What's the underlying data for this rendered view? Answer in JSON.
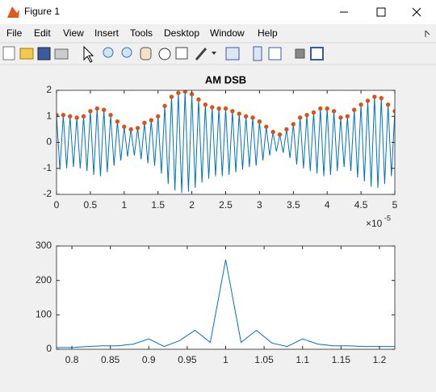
{
  "window": {
    "title": "Figure 1",
    "menu": [
      "File",
      "Edit",
      "View",
      "Insert",
      "Tools",
      "Desktop",
      "Window",
      "Help"
    ]
  },
  "chart_data": [
    {
      "type": "line",
      "title": "AM DSB",
      "x_multiplier": "×10",
      "x_exponent": "-5",
      "xlim": [
        0,
        5
      ],
      "xticks": [
        0,
        0.5,
        1,
        1.5,
        2,
        2.5,
        3,
        3.5,
        4,
        4.5,
        5
      ],
      "ylim": [
        -2,
        2
      ],
      "yticks": [
        -2,
        -1,
        0,
        1,
        2
      ],
      "series": [
        {
          "color": "#0072BD",
          "x": [
            0,
            0.05,
            0.1,
            0.15,
            0.2,
            0.25,
            0.3,
            0.35,
            0.4,
            0.45,
            0.5,
            0.55,
            0.6,
            0.65,
            0.7,
            0.75,
            0.8,
            0.85,
            0.9,
            0.95,
            1,
            1.05,
            1.1,
            1.15,
            1.2,
            1.25,
            1.3,
            1.35,
            1.4,
            1.45,
            1.5,
            1.55,
            1.6,
            1.65,
            1.7,
            1.75,
            1.8,
            1.85,
            1.9,
            1.95,
            2,
            2.05,
            2.1,
            2.15,
            2.2,
            2.25,
            2.3,
            2.35,
            2.4,
            2.45,
            2.5,
            2.55,
            2.6,
            2.65,
            2.7,
            2.75,
            2.8,
            2.85,
            2.9,
            2.95,
            3,
            3.05,
            3.1,
            3.15,
            3.2,
            3.25,
            3.3,
            3.35,
            3.4,
            3.45,
            3.5,
            3.55,
            3.6,
            3.65,
            3.7,
            3.75,
            3.8,
            3.85,
            3.9,
            3.95,
            4,
            4.05,
            4.1,
            4.15,
            4.2,
            4.25,
            4.3,
            4.35,
            4.4,
            4.45,
            4.5,
            4.55,
            4.6,
            4.65,
            4.7,
            4.75,
            4.8,
            4.85,
            4.9,
            4.95,
            5
          ],
          "values": [
            1.05,
            -1.05,
            1.05,
            -1.0,
            1.0,
            -0.95,
            0.95,
            -1.0,
            1.0,
            -1.1,
            1.2,
            -1.25,
            1.3,
            -1.3,
            1.25,
            -1.15,
            1.05,
            -0.9,
            0.8,
            -0.7,
            0.6,
            -0.55,
            0.5,
            -0.5,
            0.55,
            -0.65,
            0.75,
            -0.8,
            0.85,
            -0.9,
            1.0,
            -1.2,
            1.4,
            -1.6,
            1.75,
            -1.85,
            1.9,
            -1.95,
            1.95,
            -1.9,
            1.85,
            -1.75,
            1.65,
            -1.55,
            1.45,
            -1.4,
            1.35,
            -1.3,
            1.3,
            -1.3,
            1.3,
            -1.25,
            1.2,
            -1.15,
            1.1,
            -1.05,
            1.0,
            -0.95,
            0.95,
            -0.9,
            0.8,
            -0.7,
            0.6,
            -0.5,
            0.4,
            -0.35,
            0.3,
            -0.4,
            0.5,
            -0.6,
            0.7,
            -0.85,
            0.95,
            -1.0,
            1.05,
            -1.1,
            1.15,
            -1.2,
            1.3,
            -1.3,
            1.3,
            -1.25,
            1.2,
            -1.1,
            0.95,
            -0.95,
            1.0,
            -1.1,
            1.25,
            -1.35,
            1.45,
            -1.5,
            1.6,
            -1.7,
            1.75,
            -1.75,
            1.7,
            -1.6,
            1.45,
            -1.3,
            1.2
          ]
        },
        {
          "color": "#D95319",
          "marker": "o",
          "linestyle": "none",
          "x": [
            0,
            0.1,
            0.2,
            0.3,
            0.4,
            0.5,
            0.6,
            0.7,
            0.8,
            0.9,
            1,
            1.1,
            1.2,
            1.3,
            1.4,
            1.5,
            1.6,
            1.7,
            1.8,
            1.9,
            2,
            2.1,
            2.2,
            2.3,
            2.4,
            2.5,
            2.6,
            2.7,
            2.8,
            2.9,
            3,
            3.1,
            3.2,
            3.3,
            3.4,
            3.5,
            3.6,
            3.7,
            3.8,
            3.9,
            4,
            4.1,
            4.2,
            4.3,
            4.4,
            4.5,
            4.6,
            4.7,
            4.8,
            4.9,
            5
          ],
          "values": [
            1.05,
            1.05,
            1.0,
            0.95,
            1.0,
            1.2,
            1.3,
            1.25,
            1.05,
            0.8,
            0.6,
            0.5,
            0.55,
            0.75,
            0.85,
            1.0,
            1.4,
            1.75,
            1.9,
            1.95,
            1.85,
            1.65,
            1.45,
            1.35,
            1.3,
            1.3,
            1.2,
            1.1,
            1.0,
            0.95,
            0.8,
            0.6,
            0.4,
            0.3,
            0.5,
            0.7,
            0.95,
            1.05,
            1.15,
            1.3,
            1.3,
            1.2,
            0.95,
            1.0,
            1.25,
            1.45,
            1.6,
            1.75,
            1.7,
            1.45,
            1.2
          ]
        }
      ]
    },
    {
      "type": "line",
      "xlim": [
        0.78,
        1.22
      ],
      "xticks": [
        0.8,
        0.85,
        0.9,
        0.95,
        1,
        1.05,
        1.1,
        1.15,
        1.2
      ],
      "ylim": [
        0,
        300
      ],
      "yticks": [
        0,
        100,
        200,
        300
      ],
      "series": [
        {
          "color": "#0072BD",
          "x": [
            0.78,
            0.8,
            0.82,
            0.84,
            0.86,
            0.88,
            0.9,
            0.92,
            0.94,
            0.96,
            0.98,
            1,
            1.02,
            1.04,
            1.06,
            1.08,
            1.1,
            1.12,
            1.14,
            1.16,
            1.18,
            1.2,
            1.22
          ],
          "values": [
            5,
            5,
            8,
            10,
            10,
            15,
            30,
            8,
            25,
            55,
            20,
            260,
            20,
            55,
            18,
            8,
            30,
            15,
            10,
            10,
            8,
            8,
            8
          ]
        }
      ]
    }
  ]
}
